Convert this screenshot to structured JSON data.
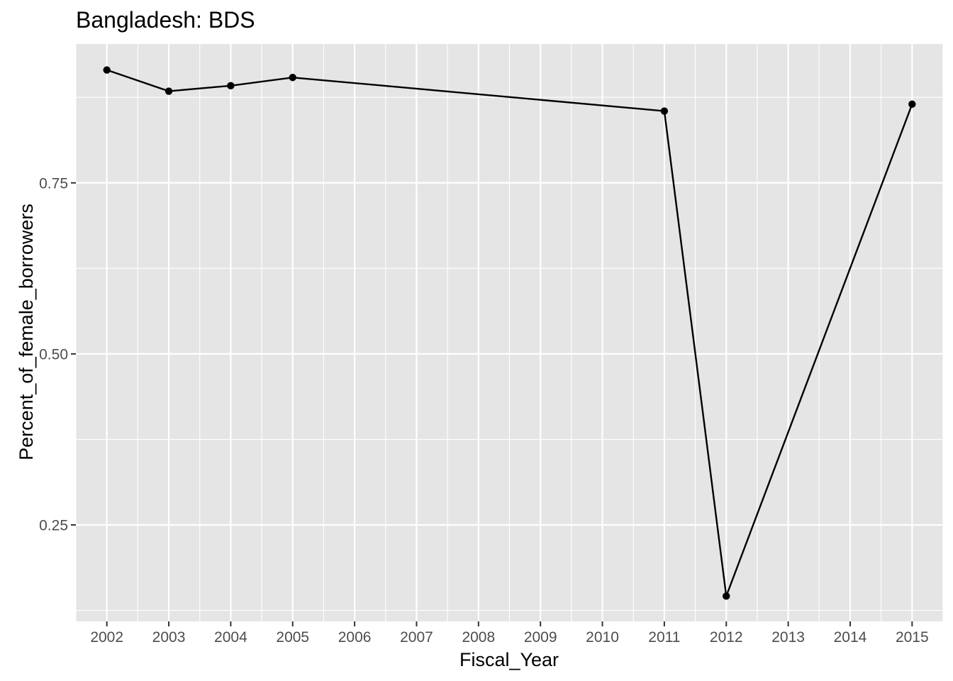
{
  "chart_data": {
    "type": "line",
    "title": "Bangladesh:  BDS",
    "xlabel": "Fiscal_Year",
    "ylabel": "Percent_of_female_borrowers",
    "x_ticks": [
      "2002",
      "2003",
      "2004",
      "2005",
      "2006",
      "2007",
      "2008",
      "2009",
      "2010",
      "2011",
      "2012",
      "2013",
      "2014",
      "2015"
    ],
    "y_ticks": [
      "0.25",
      "0.50",
      "0.75"
    ],
    "xlim": [
      2001.5,
      2015.5
    ],
    "ylim": [
      0.109,
      0.953
    ],
    "grid": true,
    "series": [
      {
        "x": [
          2002,
          2003,
          2004,
          2005,
          2011,
          2012,
          2015
        ],
        "y": [
          0.915,
          0.884,
          0.892,
          0.904,
          0.855,
          0.146,
          0.865
        ]
      }
    ]
  },
  "colors": {
    "panel_background": "#e5e5e5",
    "grid_major": "#ffffff",
    "line": "#000000",
    "point": "#000000",
    "tick_text": "#4d4d4d",
    "tick_mark": "#333333"
  }
}
